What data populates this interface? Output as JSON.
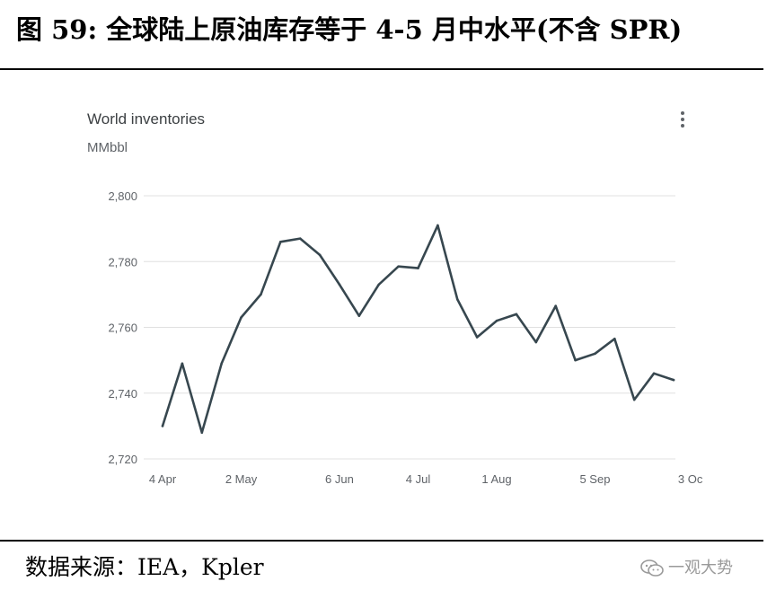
{
  "figure": {
    "title": "图 59: 全球陆上原油库存等于 4-5 月中水平(不含 SPR)",
    "source": "数据来源：IEA，Kpler",
    "watermark": "一观大势",
    "watermark_icon": "wechat-icon"
  },
  "menu_icon": "more-vert-icon",
  "colors": {
    "line": "#37474f",
    "grid": "#e0e0e0",
    "tick_text": "#5f6368"
  },
  "chart_data": {
    "type": "line",
    "title": "World inventories",
    "ylabel": "MMbbl",
    "xlabel": "",
    "ylim": [
      2720,
      2800
    ],
    "yticks": [
      2720,
      2740,
      2760,
      2780,
      2800
    ],
    "ytick_labels": [
      "2,720",
      "2,740",
      "2,760",
      "2,780",
      "2,800"
    ],
    "xtick_labels": [
      "4 Apr",
      "2 May",
      "6 Jun",
      "4 Jul",
      "1 Aug",
      "5 Sep",
      "3 Oc"
    ],
    "xtick_index": [
      0,
      4,
      9,
      13,
      17,
      22,
      27
    ],
    "grid": "horizontal",
    "legend": "none",
    "series": [
      {
        "x": [
          "4 Apr",
          "11 Apr",
          "18 Apr",
          "25 Apr",
          "2 May",
          "9 May",
          "16 May",
          "23 May",
          "30 May",
          "6 Jun",
          "13 Jun",
          "20 Jun",
          "27 Jun",
          "4 Jul",
          "11 Jul",
          "18 Jul",
          "25 Jul",
          "1 Aug",
          "8 Aug",
          "15 Aug",
          "22 Aug",
          "29 Aug",
          "5 Sep",
          "12 Sep",
          "19 Sep",
          "26 Sep",
          "3 Oct"
        ],
        "values": [
          2730,
          2749,
          2728,
          2749,
          2763,
          2770,
          2786,
          2787,
          2782,
          2773,
          2763.5,
          2773,
          2778.5,
          2778,
          2791,
          2768.5,
          2757,
          2762,
          2764,
          2755.5,
          2766.5,
          2750,
          2752,
          2756.5,
          2738,
          2746,
          2744
        ]
      }
    ]
  }
}
